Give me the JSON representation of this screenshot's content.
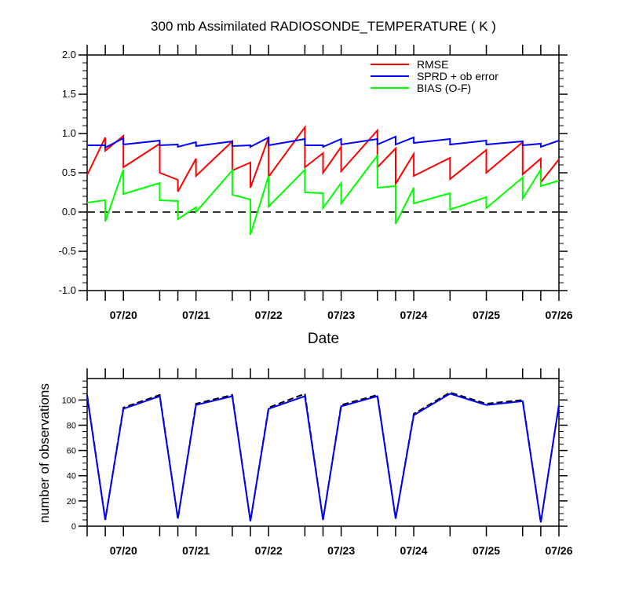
{
  "chart_data": [
    {
      "type": "line",
      "title": "300 mb Assimilated RADIOSONDE_TEMPERATURE ( K )",
      "xlabel": "Date",
      "ylabel": "",
      "x_units": "hours since 07/19 12Z",
      "xlim": [
        0,
        156
      ],
      "ylim": [
        -1.0,
        2.0
      ],
      "yticks": [
        "-1.0",
        "-0.5",
        "0.0",
        "0.5",
        "1.0",
        "1.5",
        "2.0"
      ],
      "xticks": [
        {
          "x": 12,
          "label": "07/20"
        },
        {
          "x": 36,
          "label": "07/21"
        },
        {
          "x": 60,
          "label": "07/22"
        },
        {
          "x": 84,
          "label": "07/23"
        },
        {
          "x": 108,
          "label": "07/24"
        },
        {
          "x": 132,
          "label": "07/25"
        },
        {
          "x": 156,
          "label": "07/26"
        }
      ],
      "xminor": [
        0,
        6,
        12,
        24,
        30,
        36,
        48,
        54,
        60,
        72,
        78,
        84,
        96,
        102,
        108,
        120,
        132,
        144,
        150,
        156
      ],
      "reference_line": 0,
      "legend": "top-right",
      "series": [
        {
          "name": "RMSE",
          "color": "#ff0000",
          "points": [
            [
              0,
              0.47
            ],
            [
              6,
              0.95
            ],
            [
              6,
              0.78
            ],
            [
              12,
              0.97
            ],
            [
              12,
              0.57
            ],
            [
              24,
              0.87
            ],
            [
              24,
              0.5
            ],
            [
              30,
              0.41
            ],
            [
              30,
              0.26
            ],
            [
              36,
              0.68
            ],
            [
              36,
              0.46
            ],
            [
              48,
              0.9
            ],
            [
              48,
              0.53
            ],
            [
              54,
              0.63
            ],
            [
              54,
              0.31
            ],
            [
              60,
              0.95
            ],
            [
              60,
              0.45
            ],
            [
              72,
              1.08
            ],
            [
              72,
              0.57
            ],
            [
              78,
              0.75
            ],
            [
              78,
              0.5
            ],
            [
              84,
              0.83
            ],
            [
              84,
              0.52
            ],
            [
              96,
              1.04
            ],
            [
              96,
              0.57
            ],
            [
              102,
              0.81
            ],
            [
              102,
              0.36
            ],
            [
              108,
              0.74
            ],
            [
              108,
              0.46
            ],
            [
              120,
              0.69
            ],
            [
              120,
              0.42
            ],
            [
              132,
              0.79
            ],
            [
              132,
              0.5
            ],
            [
              144,
              0.89
            ],
            [
              144,
              0.48
            ],
            [
              150,
              0.68
            ],
            [
              150,
              0.38
            ],
            [
              156,
              0.67
            ]
          ]
        },
        {
          "name": "SPRD + ob error",
          "color": "#0000ff",
          "points": [
            [
              0,
              0.85
            ],
            [
              6,
              0.85
            ],
            [
              6,
              0.82
            ],
            [
              12,
              0.94
            ],
            [
              12,
              0.86
            ],
            [
              24,
              0.91
            ],
            [
              24,
              0.85
            ],
            [
              30,
              0.86
            ],
            [
              30,
              0.83
            ],
            [
              36,
              0.89
            ],
            [
              36,
              0.84
            ],
            [
              48,
              0.9
            ],
            [
              48,
              0.84
            ],
            [
              54,
              0.85
            ],
            [
              54,
              0.83
            ],
            [
              60,
              0.95
            ],
            [
              60,
              0.85
            ],
            [
              72,
              0.93
            ],
            [
              72,
              0.85
            ],
            [
              78,
              0.85
            ],
            [
              78,
              0.83
            ],
            [
              84,
              0.93
            ],
            [
              84,
              0.86
            ],
            [
              96,
              0.93
            ],
            [
              96,
              0.86
            ],
            [
              102,
              0.96
            ],
            [
              102,
              0.86
            ],
            [
              108,
              0.95
            ],
            [
              108,
              0.88
            ],
            [
              120,
              0.93
            ],
            [
              120,
              0.86
            ],
            [
              132,
              0.91
            ],
            [
              132,
              0.86
            ],
            [
              144,
              0.9
            ],
            [
              144,
              0.85
            ],
            [
              150,
              0.87
            ],
            [
              150,
              0.83
            ],
            [
              156,
              0.91
            ]
          ]
        },
        {
          "name": "BIAS (O-F)",
          "color": "#00ff00",
          "points": [
            [
              0,
              0.12
            ],
            [
              6,
              0.15
            ],
            [
              6,
              -0.12
            ],
            [
              12,
              0.54
            ],
            [
              12,
              0.23
            ],
            [
              24,
              0.37
            ],
            [
              24,
              0.15
            ],
            [
              30,
              0.14
            ],
            [
              30,
              -0.09
            ],
            [
              36,
              0.06
            ],
            [
              36,
              0.0
            ],
            [
              48,
              0.53
            ],
            [
              48,
              0.22
            ],
            [
              54,
              0.16
            ],
            [
              54,
              -0.29
            ],
            [
              60,
              0.46
            ],
            [
              60,
              0.07
            ],
            [
              72,
              0.54
            ],
            [
              72,
              0.25
            ],
            [
              78,
              0.24
            ],
            [
              78,
              0.05
            ],
            [
              84,
              0.37
            ],
            [
              84,
              0.11
            ],
            [
              96,
              0.72
            ],
            [
              96,
              0.31
            ],
            [
              102,
              0.33
            ],
            [
              102,
              -0.15
            ],
            [
              108,
              0.31
            ],
            [
              108,
              0.11
            ],
            [
              120,
              0.24
            ],
            [
              120,
              0.03
            ],
            [
              132,
              0.19
            ],
            [
              132,
              0.05
            ],
            [
              144,
              0.44
            ],
            [
              144,
              0.17
            ],
            [
              150,
              0.54
            ],
            [
              150,
              0.33
            ],
            [
              156,
              0.4
            ]
          ]
        }
      ]
    },
    {
      "type": "line",
      "title": "",
      "xlabel": "",
      "ylabel": "number of observations",
      "x_units": "hours since 07/19 12Z",
      "xlim": [
        0,
        156
      ],
      "ylim": [
        0,
        117
      ],
      "yticks": [
        "0",
        "20",
        "40",
        "60",
        "80",
        "100"
      ],
      "xticks": [
        {
          "x": 12,
          "label": "07/20"
        },
        {
          "x": 36,
          "label": "07/21"
        },
        {
          "x": 60,
          "label": "07/22"
        },
        {
          "x": 84,
          "label": "07/23"
        },
        {
          "x": 108,
          "label": "07/24"
        },
        {
          "x": 132,
          "label": "07/25"
        },
        {
          "x": 156,
          "label": "07/26"
        }
      ],
      "x": [
        0,
        6,
        12,
        24,
        30,
        36,
        48,
        54,
        60,
        72,
        78,
        84,
        96,
        102,
        108,
        120,
        132,
        144,
        150,
        156
      ],
      "series": [
        {
          "name": "observations (dashed)",
          "color": "#000000",
          "values": [
            104,
            5,
            94,
            104,
            6,
            97,
            104,
            4,
            94,
            105,
            5,
            96,
            104,
            6,
            89,
            106,
            97,
            100,
            3,
            96
          ]
        },
        {
          "name": "observations (solid)",
          "color": "#0000ff",
          "values": [
            103,
            5,
            93,
            103,
            6,
            96,
            103,
            4,
            93,
            103,
            5,
            95,
            103,
            6,
            88,
            105,
            96,
            99,
            3,
            96
          ]
        }
      ]
    }
  ]
}
